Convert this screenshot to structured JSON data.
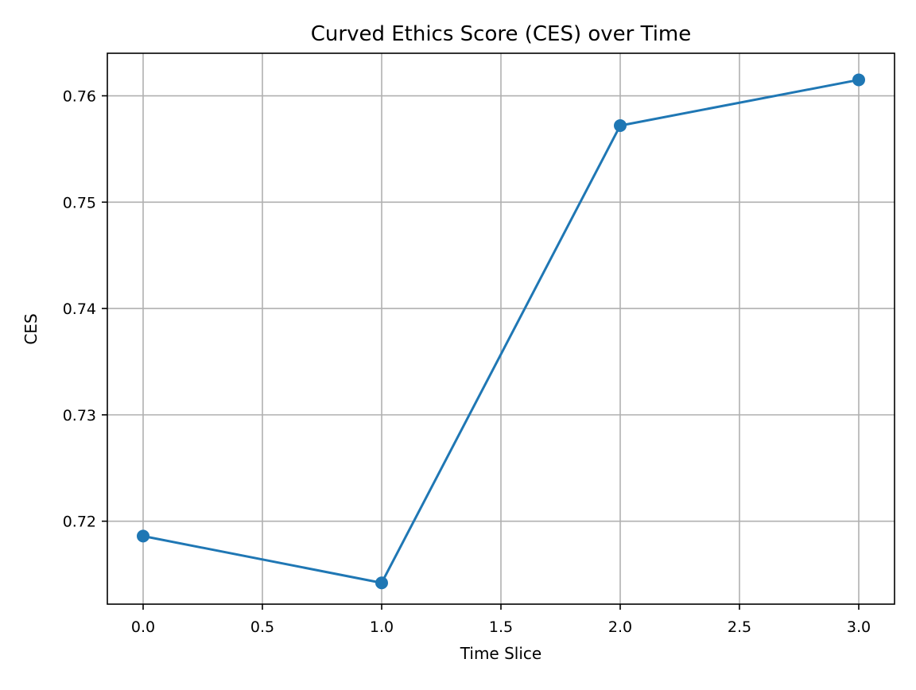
{
  "chart_data": {
    "type": "line",
    "title": "Curved Ethics Score (CES) over Time",
    "xlabel": "Time Slice",
    "ylabel": "CES",
    "x": [
      0,
      1,
      2,
      3
    ],
    "series": [
      {
        "values": [
          0.7186,
          0.7142,
          0.7572,
          0.7615
        ],
        "color": "#1f77b4",
        "marker": "circle"
      }
    ],
    "xlim": [
      -0.15,
      3.15
    ],
    "ylim": [
      0.7122,
      0.764
    ],
    "xticks": [
      0.0,
      0.5,
      1.0,
      1.5,
      2.0,
      2.5,
      3.0
    ],
    "xtick_labels": [
      "0.0",
      "0.5",
      "1.0",
      "1.5",
      "2.0",
      "2.5",
      "3.0"
    ],
    "yticks": [
      0.72,
      0.73,
      0.74,
      0.75,
      0.76
    ],
    "ytick_labels": [
      "0.72",
      "0.73",
      "0.74",
      "0.75",
      "0.76"
    ],
    "grid": true,
    "grid_color": "#b0b0b0"
  }
}
